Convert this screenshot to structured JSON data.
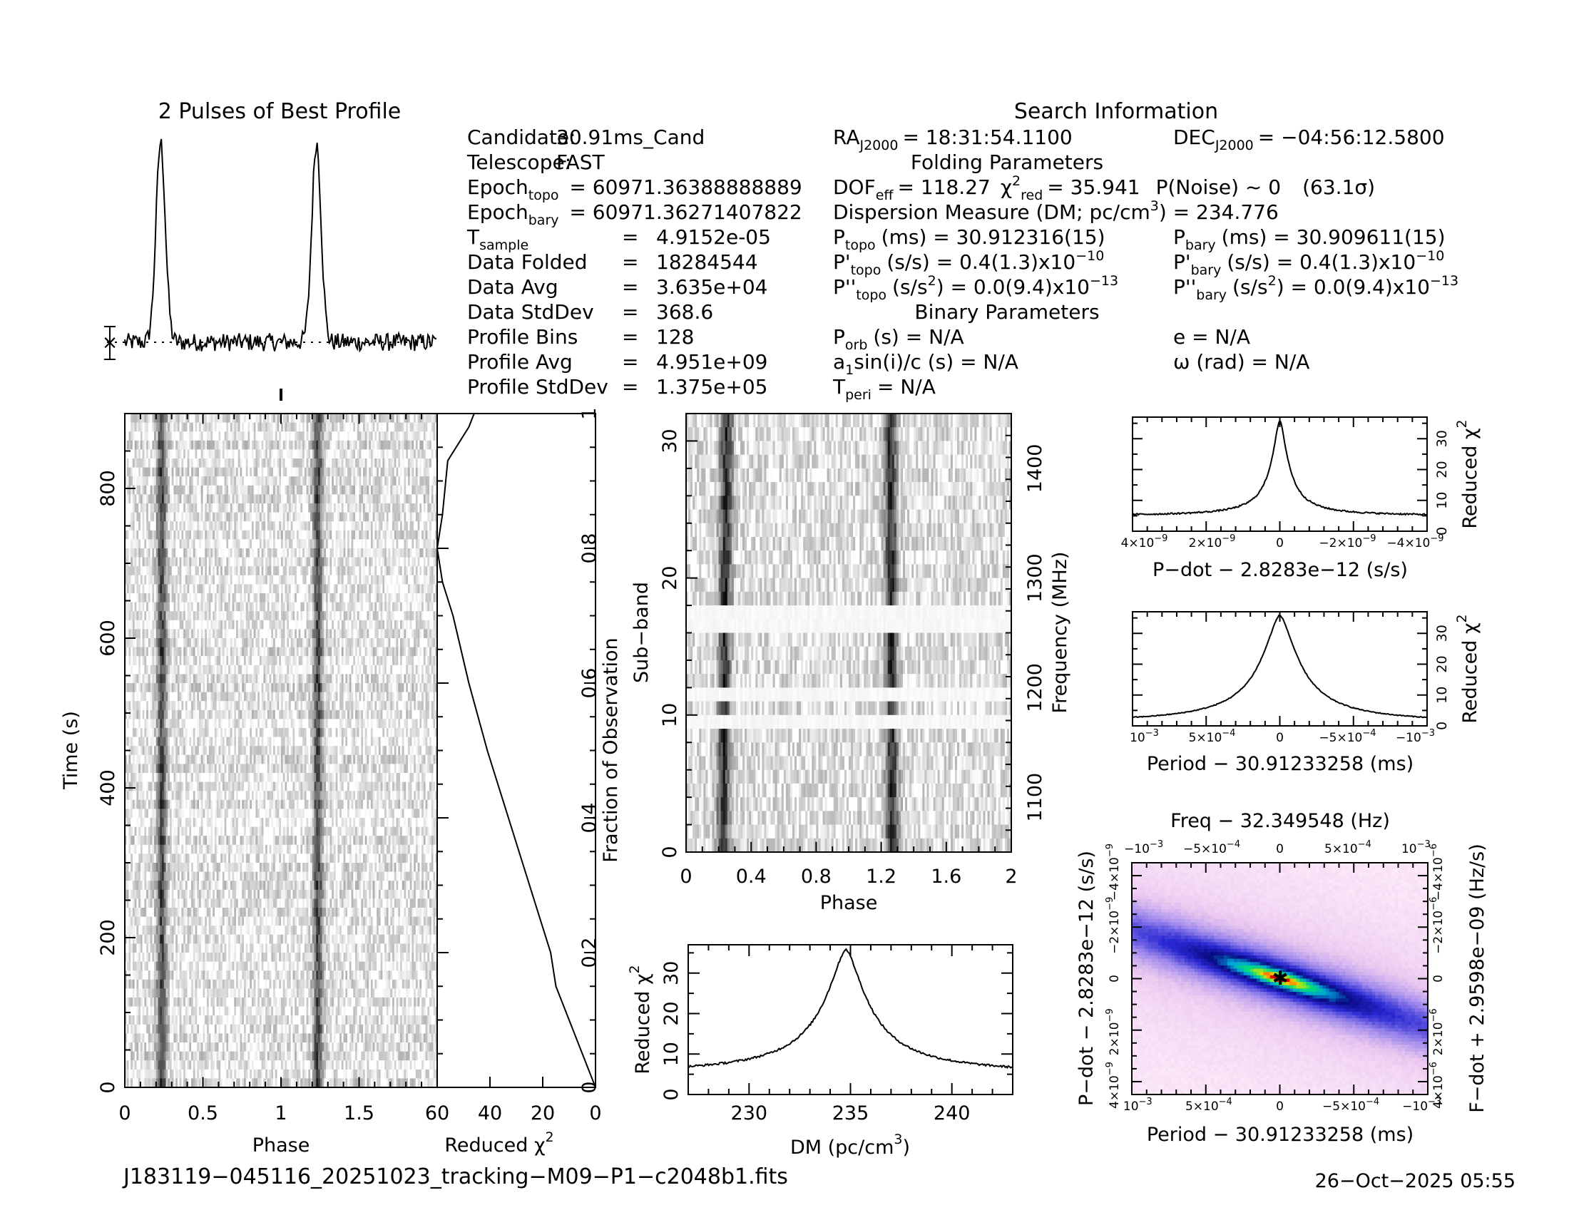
{
  "profile_title": "2 Pulses of Best Profile",
  "info": {
    "title": "Search Information",
    "col1": [
      {
        "label": "Candidate:",
        "value": "30.91ms_Cand"
      },
      {
        "label": "Telescope:",
        "value": "FAST"
      },
      {
        "label": "Epoch",
        "sub": "topo",
        "value": "= 60971.36388888889"
      },
      {
        "label": "Epoch",
        "sub": "bary",
        "value": "= 60971.36271407822"
      },
      {
        "label": "T",
        "sub": "sample",
        "eq": "=",
        "value": "4.9152e-05"
      },
      {
        "label": "Data Folded",
        "eq": "=",
        "value": "18284544"
      },
      {
        "label": "Data Avg",
        "eq": "=",
        "value": "3.635e+04"
      },
      {
        "label": "Data StdDev",
        "eq": "=",
        "value": "368.6"
      },
      {
        "label": "Profile Bins",
        "eq": "=",
        "value": "128"
      },
      {
        "label": "Profile Avg",
        "eq": "=",
        "value": "4.951e+09"
      },
      {
        "label": "Profile StdDev",
        "eq": "=",
        "value": "1.375e+05"
      }
    ],
    "ra": "RA",
    "ra_sub": "J2000",
    "ra_value": "= 18:31:54.1100",
    "dec": "DEC",
    "dec_sub": "J2000",
    "dec_value": "= −04:56:12.5800",
    "folding_title": "Folding Parameters",
    "dof_label": "DOF",
    "dof_sub": "eff",
    "dof_value": "= 118.27",
    "chi_label": "χ",
    "chi_sup": "2",
    "chi_sub": "red",
    "chi_value": "= 35.941",
    "pnoise": "P(Noise) ~ 0",
    "sigma": "(63.1σ)",
    "dm_line": "Dispersion Measure (DM; pc/cm",
    "dm_sup": "3",
    "dm_value": ") = 234.776",
    "ptopo": "P",
    "ptopo_sub": "topo",
    "ptopo_value": "(ms) =  30.912316(15)",
    "pbary": "P",
    "pbary_sub": "bary",
    "pbary_value": "(ms) =  30.909611(15)",
    "pdtopo": "P'",
    "pdtopo_sub": "topo",
    "pdtopo_value": "(s/s) =  0.4(1.3)x10",
    "pdtopo_exp": "−10",
    "pdbary": "P'",
    "pdbary_sub": "bary",
    "pdbary_value": "(s/s) =  0.4(1.3)x10",
    "pdbary_exp": "−10",
    "pddtopo": "P''",
    "pddtopo_sub": "topo",
    "pddtopo_value": "(s/s",
    "pddtopo_sup": "2",
    "pddtopo_value2": ") = 0.0(9.4)x10",
    "pddtopo_exp": "−13",
    "pddbary": "P''",
    "pddbary_sub": "bary",
    "pddbary_value": "(s/s",
    "pddbary_sup": "2",
    "pddbary_value2": ") = 0.0(9.4)x10",
    "pddbary_exp": "−13",
    "binary_title": "Binary Parameters",
    "porb": "P",
    "porb_sub": "orb",
    "porb_value": "(s) = N/A",
    "e_value": "e = N/A",
    "a1": "a",
    "a1_sub": "1",
    "a1_value": "sin(i)/c (s) = N/A",
    "omega_value": "ω (rad) = N/A",
    "tperi": "T",
    "tperi_sub": "peri",
    "tperi_value": "= N/A"
  },
  "time_phase": {
    "xlabel": "Phase",
    "ylabel": "Time (s)",
    "xticks": [
      "0",
      "0.5",
      "1",
      "1.5"
    ],
    "yticks": [
      "0",
      "200",
      "400",
      "600",
      "800"
    ]
  },
  "chi_vs_time": {
    "xlabel": "Reduced χ",
    "xlabel_sup": "2",
    "ylabel": "Fraction of Observation",
    "xticks": [
      "60",
      "40",
      "20",
      "0"
    ],
    "yticks": [
      "0",
      "0.2",
      "0.4",
      "0.6",
      "0.8",
      "1"
    ]
  },
  "subband": {
    "xlabel": "Phase",
    "ylabel": "Sub−band",
    "ylabel_right": "Frequency (MHz)",
    "xticks": [
      "0",
      "0.4",
      "0.8",
      "1.2",
      "1.6",
      "2"
    ],
    "yticks": [
      "0",
      "10",
      "20",
      "30"
    ],
    "freq_ticks": [
      "1100",
      "1200",
      "1300",
      "1400"
    ]
  },
  "dm_plot": {
    "xlabel": "DM (pc/cm",
    "xlabel_sup": "3",
    "xlabel_end": ")",
    "ylabel": "Reduced χ",
    "ylabel_sup": "2",
    "xticks": [
      "230",
      "235",
      "240"
    ],
    "yticks": [
      "0",
      "10",
      "20",
      "30"
    ]
  },
  "pdot_plot": {
    "xlabel": "P−dot − 2.8283e−12 (s/s)",
    "ylabel": "Reduced χ",
    "ylabel_sup": "2",
    "xticks": [
      "4×10",
      "2×10",
      "0",
      "−2×10",
      "−4×10"
    ],
    "xtick_exp": "−9",
    "yticks": [
      "0",
      "10",
      "20",
      "30"
    ]
  },
  "period_plot": {
    "xlabel": "Period − 30.91233258 (ms)",
    "ylabel": "Reduced χ",
    "ylabel_sup": "2",
    "xticks": [
      "10",
      "5×10",
      "0",
      "−5×10",
      "−10"
    ],
    "xtick_exps": [
      "−3",
      "−4",
      "",
      "−4",
      "−3"
    ],
    "yticks": [
      "0",
      "10",
      "20",
      "30"
    ]
  },
  "ppdot_map": {
    "top_title": "Freq − 32.349548 (Hz)",
    "top_ticks": [
      "−10",
      "−5×10",
      "0",
      "5×10",
      "10"
    ],
    "top_exps": [
      "−3",
      "−4",
      "",
      "−4",
      "−3"
    ],
    "xlabel": "Period − 30.91233258 (ms)",
    "xticks": [
      "10",
      "5×10",
      "0",
      "−5×10",
      "−10"
    ],
    "xtick_exps": [
      "−3",
      "−4",
      "",
      "−4",
      "−3"
    ],
    "ylabel": "P−dot − 2.8283e−12 (s/s)",
    "yticks": [
      "4×10",
      "2×10",
      "0",
      "−2×10",
      "−4×10"
    ],
    "ytick_exp": "−9",
    "ylabel_right": "F−dot + 2.9598e−09 (Hz/s)",
    "rticks": [
      "4×10",
      "2×10",
      "0",
      "−2×10",
      "−4×10"
    ],
    "rtick_exp": "−6"
  },
  "footer_file": "J183119−045116_20251023_tracking−M09−P1−c2048b1.fits",
  "footer_date": "26−Oct−2025 05:55",
  "chart_data": [
    {
      "type": "line",
      "title": "2 Pulses of Best Profile",
      "x_range": [
        0,
        2
      ],
      "peaks_phase": [
        0.23,
        1.23
      ],
      "peak_width": 0.03
    },
    {
      "type": "heatmap",
      "xlabel": "Phase",
      "ylabel": "Time (s)",
      "xlim": [
        0,
        2
      ],
      "ylim": [
        0,
        900
      ],
      "pulse_phase": [
        0.23,
        1.23
      ]
    },
    {
      "type": "line",
      "xlabel": "Reduced χ2",
      "ylabel": "Fraction of Observation",
      "xlim": [
        60,
        0
      ],
      "ylim": [
        0,
        1
      ],
      "points": [
        [
          0,
          0
        ],
        [
          5,
          0.05
        ],
        [
          10,
          0.1
        ],
        [
          15,
          0.15
        ],
        [
          17,
          0.2
        ],
        [
          25,
          0.3
        ],
        [
          33,
          0.4
        ],
        [
          41,
          0.5
        ],
        [
          48,
          0.6
        ],
        [
          54,
          0.7
        ],
        [
          58,
          0.75
        ],
        [
          60,
          0.8
        ],
        [
          58,
          0.85
        ],
        [
          56,
          0.93
        ],
        [
          48,
          0.98
        ],
        [
          46,
          1
        ]
      ]
    },
    {
      "type": "heatmap",
      "xlabel": "Phase",
      "ylabel": "Sub−band",
      "xlim": [
        0,
        2
      ],
      "ylim": [
        0,
        32
      ],
      "pulse_phase": [
        0.23,
        1.27
      ],
      "freq_range_MHz": [
        1050,
        1450
      ]
    },
    {
      "type": "line",
      "xlabel": "DM (pc/cm3)",
      "ylabel": "Reduced χ2",
      "xlim": [
        227,
        243
      ],
      "ylim": [
        0,
        37
      ],
      "peak_dm": 234.776,
      "peak_value": 35.9,
      "base_value": 5
    },
    {
      "type": "line",
      "xlabel": "P−dot − 2.8283e−12 (s/s)",
      "ylabel": "Reduced χ2",
      "xlim": [
        4.5e-09,
        -4.5e-09
      ],
      "ylim": [
        0,
        37
      ],
      "peak": 35.9,
      "base": 5
    },
    {
      "type": "line",
      "xlabel": "Period − 30.91233258 (ms)",
      "ylabel": "Reduced χ2",
      "xlim": [
        0.001,
        -0.001
      ],
      "ylim": [
        0,
        37
      ],
      "peak": 35.9,
      "base": 1
    },
    {
      "type": "heatmap",
      "xlabel": "Period − 30.91233258 (ms)",
      "ylabel": "P−dot − 2.8283e−12 (s/s)",
      "xlim": [
        0.001,
        -0.001
      ],
      "ylim": [
        -4.5e-09,
        4.5e-09
      ]
    }
  ]
}
